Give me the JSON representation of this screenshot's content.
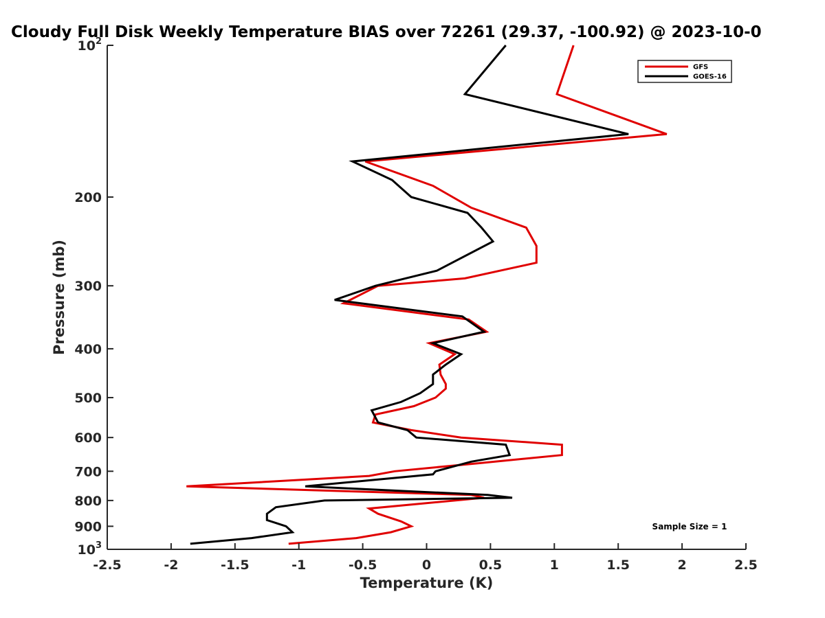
{
  "chart_data": {
    "type": "line",
    "title": "Cloudy Full Disk Weekly Temperature BIAS over 72261 (29.37, -100.92) @ 2023-10-0",
    "xlabel": "Temperature (K)",
    "ylabel": "Pressure (mb)",
    "xlim": [
      -2.5,
      2.5
    ],
    "ylim": [
      1000,
      100
    ],
    "y_scale": "log (reversed)",
    "x_ticks": [
      "-2.5",
      "-2",
      "-1.5",
      "-1",
      "-0.5",
      "0",
      "0.5",
      "1",
      "1.5",
      "2",
      "2.5"
    ],
    "x_tick_values": [
      -2.5,
      -2,
      -1.5,
      -1,
      -0.5,
      0,
      0.5,
      1,
      1.5,
      2,
      2.5
    ],
    "y_ticks": [
      {
        "value": 100,
        "base": "10",
        "exp": "2"
      },
      {
        "value": 200,
        "label": "200"
      },
      {
        "value": 300,
        "label": "300"
      },
      {
        "value": 400,
        "label": "400"
      },
      {
        "value": 500,
        "label": "500"
      },
      {
        "value": 600,
        "label": "600"
      },
      {
        "value": 700,
        "label": "700"
      },
      {
        "value": 800,
        "label": "800"
      },
      {
        "value": 900,
        "label": "900"
      },
      {
        "value": 1000,
        "base": "10",
        "exp": "3"
      }
    ],
    "legend_position": "top-right",
    "annotation": "Sample Size = 1",
    "series": [
      {
        "name": "GFS",
        "color": "#e00000",
        "points": [
          [
            1.15,
            100
          ],
          [
            1.02,
            125
          ],
          [
            1.88,
            150
          ],
          [
            -0.48,
            170
          ],
          [
            0.05,
            190
          ],
          [
            0.35,
            210
          ],
          [
            0.78,
            230
          ],
          [
            0.86,
            250
          ],
          [
            0.86,
            270
          ],
          [
            0.3,
            290
          ],
          [
            -0.38,
            300
          ],
          [
            -0.65,
            325
          ],
          [
            0.33,
            350
          ],
          [
            0.47,
            370
          ],
          [
            0.02,
            390
          ],
          [
            0.22,
            410
          ],
          [
            0.1,
            430
          ],
          [
            0.11,
            450
          ],
          [
            0.15,
            470
          ],
          [
            0.15,
            480
          ],
          [
            0.07,
            500
          ],
          [
            -0.1,
            520
          ],
          [
            -0.4,
            540
          ],
          [
            -0.42,
            560
          ],
          [
            -0.12,
            580
          ],
          [
            0.27,
            600
          ],
          [
            1.06,
            620
          ],
          [
            1.06,
            650
          ],
          [
            0.4,
            675
          ],
          [
            -0.25,
            700
          ],
          [
            -0.45,
            715
          ],
          [
            -1.88,
            750
          ],
          [
            0.35,
            780
          ],
          [
            0.45,
            790
          ],
          [
            -0.45,
            830
          ],
          [
            -0.38,
            850
          ],
          [
            -0.2,
            880
          ],
          [
            -0.12,
            900
          ],
          [
            -0.28,
            925
          ],
          [
            -0.55,
            950
          ],
          [
            -1.08,
            975
          ]
        ]
      },
      {
        "name": "GOES-16",
        "color": "#000000",
        "points": [
          [
            0.62,
            100
          ],
          [
            0.3,
            125
          ],
          [
            1.58,
            150
          ],
          [
            -0.58,
            170
          ],
          [
            -0.27,
            185
          ],
          [
            -0.12,
            200
          ],
          [
            0.32,
            215
          ],
          [
            0.43,
            230
          ],
          [
            0.52,
            245
          ],
          [
            0.08,
            280
          ],
          [
            -0.4,
            300
          ],
          [
            -0.72,
            320
          ],
          [
            0.28,
            345
          ],
          [
            0.45,
            370
          ],
          [
            0.05,
            390
          ],
          [
            0.27,
            410
          ],
          [
            0.15,
            430
          ],
          [
            0.05,
            450
          ],
          [
            0.05,
            470
          ],
          [
            -0.05,
            490
          ],
          [
            -0.2,
            510
          ],
          [
            -0.43,
            530
          ],
          [
            -0.38,
            560
          ],
          [
            -0.15,
            580
          ],
          [
            -0.08,
            600
          ],
          [
            0.62,
            620
          ],
          [
            0.65,
            650
          ],
          [
            0.35,
            670
          ],
          [
            0.07,
            700
          ],
          [
            0.05,
            710
          ],
          [
            -0.95,
            750
          ],
          [
            0.48,
            780
          ],
          [
            0.67,
            790
          ],
          [
            -0.8,
            800
          ],
          [
            -1.18,
            825
          ],
          [
            -1.25,
            850
          ],
          [
            -1.25,
            875
          ],
          [
            -1.1,
            900
          ],
          [
            -1.05,
            925
          ],
          [
            -1.37,
            950
          ],
          [
            -1.85,
            975
          ]
        ]
      }
    ]
  }
}
